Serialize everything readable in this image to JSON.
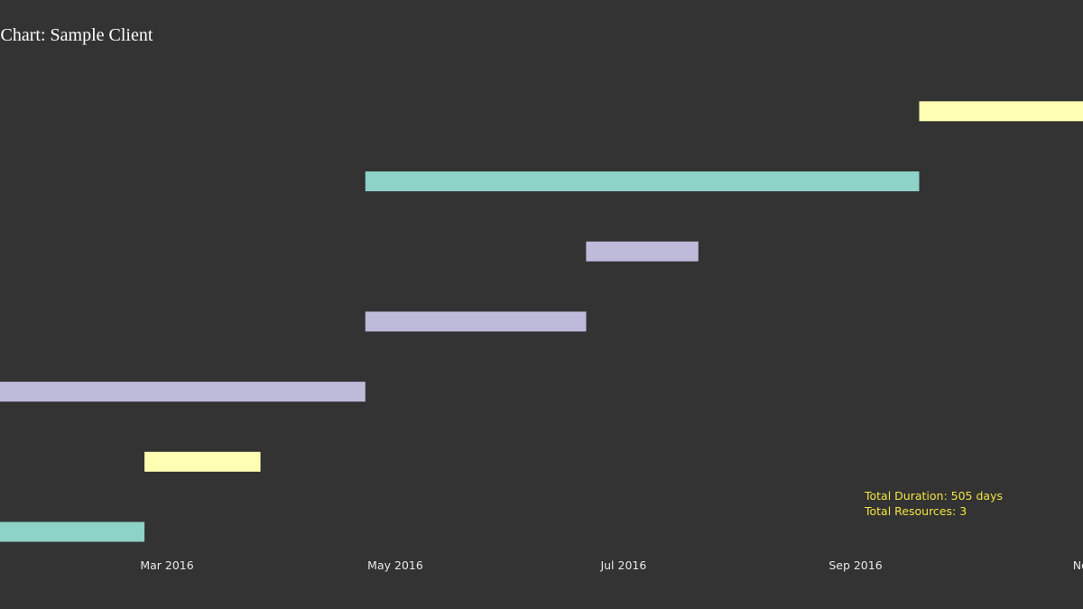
{
  "chart_data": {
    "type": "bar",
    "orientation": "horizontal",
    "title": "t Chart: Sample Client",
    "x_axis": {
      "scale": "date",
      "ticks": [
        {
          "date": "2016-03-01",
          "label": "Mar 2016"
        },
        {
          "date": "2016-05-01",
          "label": "May 2016"
        },
        {
          "date": "2016-07-01",
          "label": "Jul 2016"
        },
        {
          "date": "2016-09-01",
          "label": "Sep 2016"
        },
        {
          "date": "2016-11-01",
          "label": "Nov"
        }
      ]
    },
    "grid": false,
    "legend": "none",
    "tasks": [
      {
        "start": "2016-01-01",
        "end": "2016-02-24",
        "color": "#8dd3c7"
      },
      {
        "start": "2016-02-24",
        "end": "2016-03-26",
        "color": "#ffffb3"
      },
      {
        "start": "2016-01-01",
        "end": "2016-04-23",
        "color": "#bebada"
      },
      {
        "start": "2016-04-23",
        "end": "2016-06-21",
        "color": "#bebada"
      },
      {
        "start": "2016-06-21",
        "end": "2016-07-21",
        "color": "#bebada"
      },
      {
        "start": "2016-04-23",
        "end": "2016-09-18",
        "color": "#8dd3c7"
      },
      {
        "start": "2016-09-18",
        "end": "2016-12-31",
        "color": "#ffffb3"
      }
    ],
    "annotations": [
      "Total Duration: 505 days",
      "Total Resources: 3"
    ]
  },
  "colors": {
    "background": "#333333",
    "annotation": "#f0e442",
    "text": "#ffffff"
  }
}
